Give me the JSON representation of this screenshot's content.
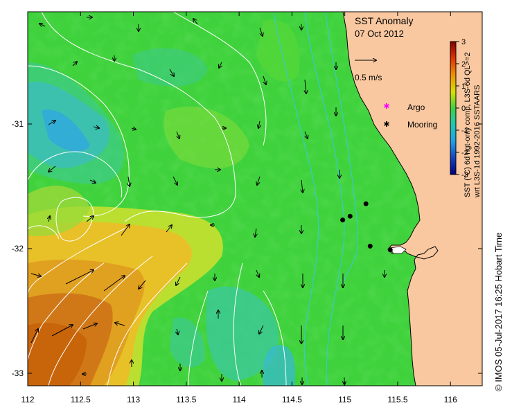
{
  "map": {
    "title": "SST Anomaly",
    "date": "07 Oct 2012",
    "x_ticks": [
      "112",
      "112.5",
      "113",
      "113.5",
      "114",
      "114.5",
      "115",
      "115.5",
      "116"
    ],
    "y_ticks": [
      "-31",
      "-32",
      "-33"
    ],
    "lon_range": [
      112,
      116.3
    ],
    "lat_range": [
      -30.1,
      -33.1
    ],
    "colors": {
      "land": "#f9c8a0",
      "ocean_base": "#3fd23c",
      "warm_high": "#c8640a",
      "warm_mid": "#e8b020",
      "warm_low": "#c8e030",
      "cool_low": "#3cc8a0",
      "cool_mid": "#3cb4d8",
      "contour": "#ffffff",
      "bathymetry": "#38c8e0"
    }
  },
  "vector_scale": {
    "label": "0.5 m/s",
    "icon": "arrow-right-icon"
  },
  "legend": {
    "argo_label": "Argo",
    "argo_color": "#ff00ff",
    "argo_icon": "star-icon",
    "mooring_label": "Mooring",
    "mooring_icon": "star-icon"
  },
  "moorings": [
    {
      "lon": 114.98,
      "lat": -31.77
    },
    {
      "lon": 115.05,
      "lat": -31.74
    },
    {
      "lon": 115.2,
      "lat": -31.64
    },
    {
      "lon": 115.24,
      "lat": -31.98
    },
    {
      "lon": 115.43,
      "lat": -32.01
    }
  ],
  "colorbar": {
    "ticks": [
      "3",
      "2",
      "1",
      "0",
      "-1",
      "-2",
      "-3"
    ],
    "range": [
      -3,
      3
    ],
    "label_line1": "SST (°C) 6d ngt-only comp, L3S-6d QL>=2",
    "label_line2": "wrt L3S-1d 1992-2016 SSTAARS"
  },
  "credit": "© IMOS 05-Jul-2017 16:25 Hobart Time"
}
